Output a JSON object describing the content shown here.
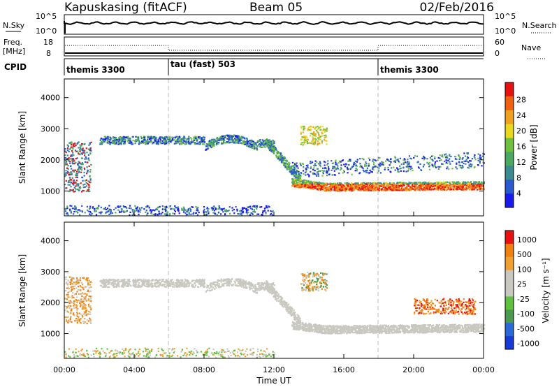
{
  "header": {
    "station": "Kapuskasing (fitACF)",
    "beam": "Beam 05",
    "date": "02/Feb/2016"
  },
  "noise_panel": {
    "left_label": "N.Sky",
    "right_label": "N.Search",
    "left_ticks": [
      "10^5",
      "10^0"
    ],
    "right_ticks": [
      "10^5",
      "10^0"
    ]
  },
  "freq_panel": {
    "left_label_1": "Freq.",
    "left_label_2": "[MHz]",
    "left_ticks": [
      "18",
      "8"
    ],
    "right_label": "Nave",
    "right_ticks": [
      "60",
      "0"
    ]
  },
  "cpid": {
    "label": "CPID",
    "segments": [
      {
        "name": "themis 3300",
        "start_hour": 0
      },
      {
        "name": "tau (fast) 503",
        "start_hour": 6
      },
      {
        "name": "themis 3300",
        "start_hour": 18
      }
    ]
  },
  "colors": {
    "power_scale": [
      "#1a1af0",
      "#2a5ad0",
      "#3a8a90",
      "#4aa860",
      "#70c040",
      "#e8d820",
      "#f0a020",
      "#f06010",
      "#e81010"
    ],
    "velocity_scale": [
      "#1a3ad8",
      "#2a6ad8",
      "#4a9a50",
      "#60c040",
      "#c8c8c0",
      "#c8c8c0",
      "#f0a030",
      "#f08010",
      "#e81010"
    ],
    "ground_scatter": "#c8c8c0"
  },
  "chart_data": [
    {
      "type": "heatmap",
      "name": "power",
      "ylabel": "Slant Range [km]",
      "xlim": [
        0,
        24
      ],
      "ylim": [
        200,
        4600
      ],
      "yticks": [
        "1000",
        "2000",
        "3000",
        "4000"
      ],
      "colorbar": {
        "label": "Power [dB]",
        "ticks": [
          "4",
          "8",
          "12",
          "16",
          "20",
          "24",
          "28"
        ],
        "range": [
          0,
          30
        ]
      },
      "features": [
        {
          "desc": "ionospheric scatter",
          "start_hour": 2.0,
          "end_hour": 12.0,
          "range_km": [
            2300,
            2900
          ],
          "power_db": 8
        },
        {
          "desc": "strong echoes",
          "start_hour": 13.0,
          "end_hour": 24.0,
          "range_km": [
            900,
            1400
          ],
          "power_db": 26
        }
      ]
    },
    {
      "type": "heatmap",
      "name": "velocity",
      "ylabel": "Slant Range [km]",
      "xlim": [
        0,
        24
      ],
      "ylim": [
        200,
        4600
      ],
      "yticks": [
        "1000",
        "2000",
        "3000",
        "4000"
      ],
      "colorbar": {
        "label": "Velocity [m s⁻¹]",
        "ticks": [
          "1000",
          "500",
          "100",
          "25",
          "-25",
          "-100",
          "-500",
          "-1000"
        ]
      }
    }
  ],
  "xaxis": {
    "ticks": [
      "00:00",
      "04:00",
      "08:00",
      "12:00",
      "16:00",
      "20:00",
      "00:00"
    ],
    "label": "Time UT"
  }
}
